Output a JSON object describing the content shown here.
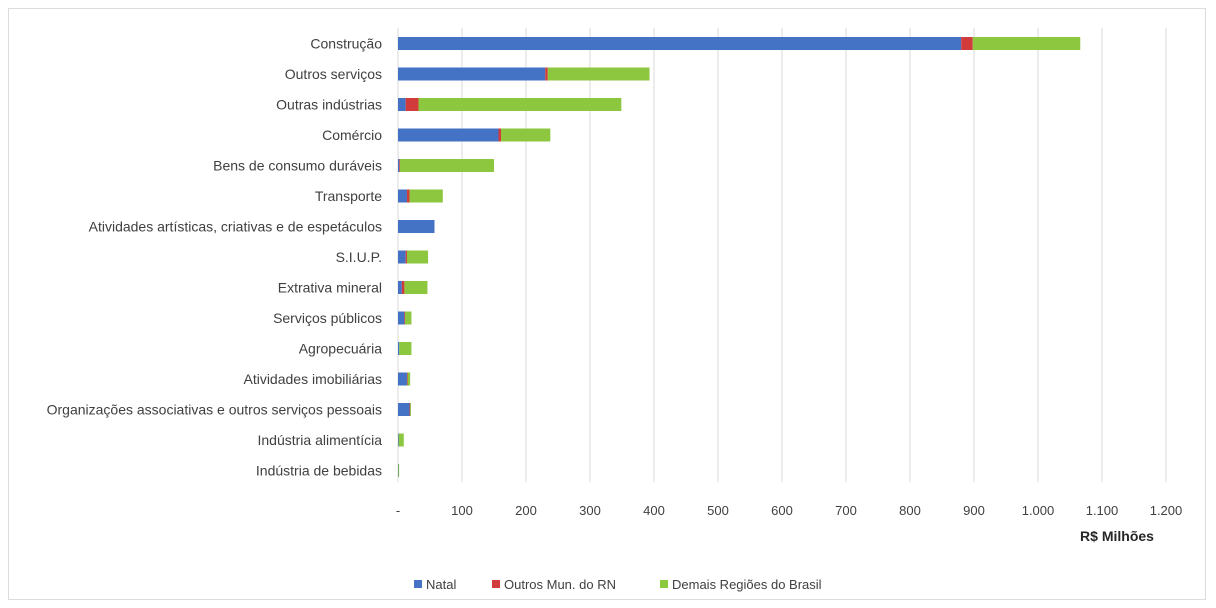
{
  "chart_data": {
    "type": "bar",
    "orientation": "horizontal",
    "stacked": true,
    "categories": [
      "Construção",
      "Outros serviços",
      "Outras indústrias",
      "Comércio",
      "Bens de consumo duráveis",
      "Transporte",
      "Atividades artísticas, criativas e de espetáculos",
      "S.I.U.P.",
      "Extrativa mineral",
      "Serviços públicos",
      "Agropecuária",
      "Atividades imobiliárias",
      "Organizações associativas e outros serviços pessoais",
      "Indústria alimentícia",
      "Indústria de bebidas"
    ],
    "series": [
      {
        "name": "Natal",
        "color": "#4472C4",
        "values": [
          880,
          230,
          12,
          157,
          2,
          14,
          57,
          12,
          6,
          10,
          2,
          14,
          18,
          1,
          0.5
        ]
      },
      {
        "name": "Outros Mun. do RN",
        "color": "#D13B3B",
        "values": [
          18,
          4,
          20,
          4,
          1,
          4,
          0,
          2,
          4,
          1,
          0,
          1,
          1,
          0,
          0
        ]
      },
      {
        "name": "Demais Regiões do Brasil",
        "color": "#8DC63F",
        "values": [
          168,
          159,
          317,
          77,
          147,
          52,
          0,
          33,
          36,
          10,
          19,
          4,
          1,
          8,
          1
        ]
      }
    ],
    "xlim": [
      0,
      1200
    ],
    "x_ticks": [
      0,
      100,
      200,
      300,
      400,
      500,
      600,
      700,
      800,
      900,
      1000,
      1100,
      1200
    ],
    "x_tick_labels": [
      "-",
      "100",
      "200",
      "300",
      "400",
      "500",
      "600",
      "700",
      "800",
      "900",
      "1.000",
      "1.100",
      "1.200"
    ],
    "xlabel": "R$ Milhões",
    "ylabel": "",
    "title": "",
    "grid": "vertical",
    "legend_position": "bottom"
  }
}
